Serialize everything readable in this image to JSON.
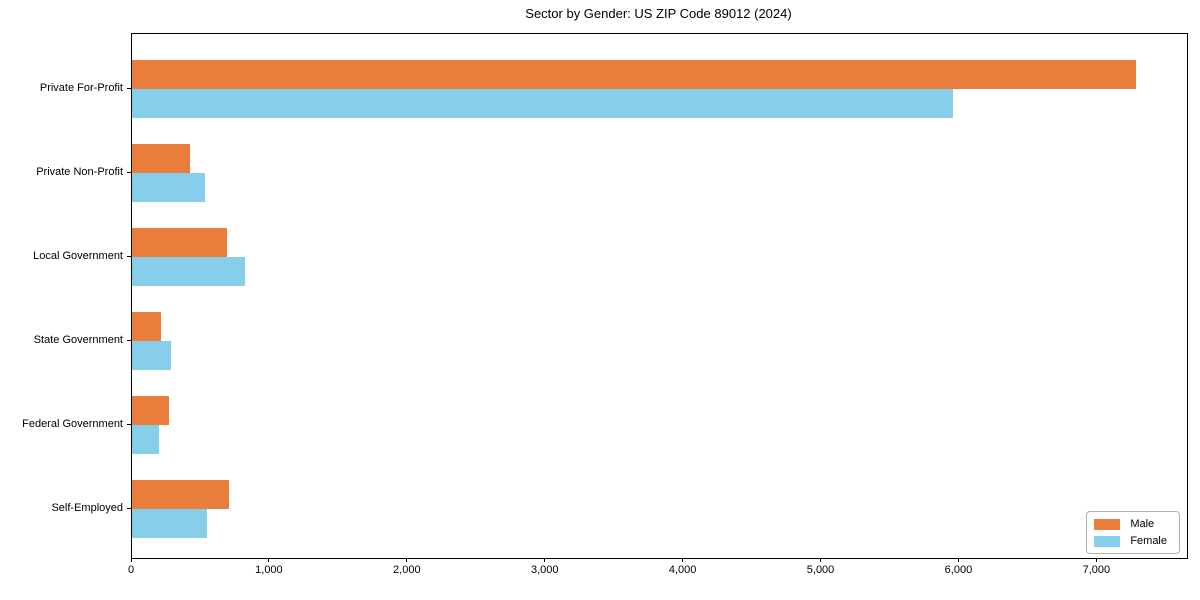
{
  "chart_data": {
    "type": "bar",
    "orientation": "horizontal",
    "title": "Sector by Gender: US ZIP Code 89012 (2024)",
    "categories": [
      "Private For-Profit",
      "Private Non-Profit",
      "Local Government",
      "State Government",
      "Federal Government",
      "Self-Employed"
    ],
    "series": [
      {
        "name": "Male",
        "color": "#e97d3c",
        "values": [
          7280,
          420,
          690,
          210,
          270,
          700
        ]
      },
      {
        "name": "Female",
        "color": "#87ceeb",
        "values": [
          5950,
          530,
          820,
          280,
          195,
          545
        ]
      }
    ],
    "xlabel": "",
    "ylabel": "",
    "xlim": [
      0,
      7650
    ],
    "x_ticks": [
      0,
      1000,
      2000,
      3000,
      4000,
      5000,
      6000,
      7000
    ],
    "x_tick_labels": [
      "0",
      "1,000",
      "2,000",
      "3,000",
      "4,000",
      "5,000",
      "6,000",
      "7,000"
    ],
    "grid": false,
    "legend_position": "lower right"
  },
  "colors": {
    "axis": "#000000",
    "background": "#ffffff",
    "legend_border": "#b0b0b0"
  }
}
